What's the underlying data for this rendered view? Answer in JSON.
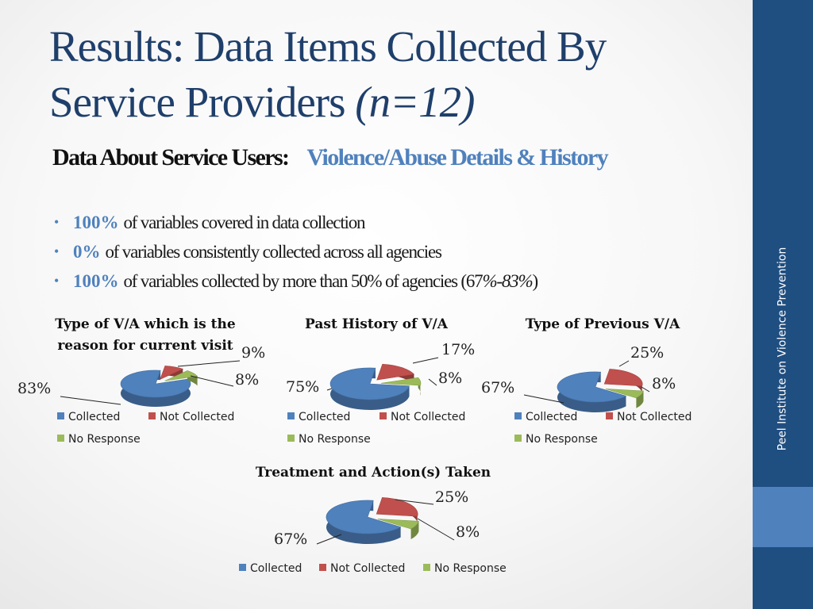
{
  "slide": {
    "title_line1": "Results: Data Items Collected By",
    "title_line2": "Service Providers",
    "title_n": "(n=12)",
    "subhead_dark": "Data About Service Users:",
    "subhead_blue": "Violence/Abuse Details & History",
    "bullets": [
      {
        "pct": "100%",
        "text": "of variables covered in data collection",
        "extra": "",
        "extra_close": ""
      },
      {
        "pct": "0%",
        "text": "of variables consistently collected across all agencies",
        "extra": "",
        "extra_close": ""
      },
      {
        "pct": "100%",
        "text": "of variables collected by more than 50% of agencies (67",
        "extra": "%-83%",
        "extra_close": ")"
      }
    ],
    "sidebar_text": "Peel Institute on Violence Prevention"
  },
  "colors": {
    "collected": "#4f81bd",
    "not_collected": "#c0504d",
    "no_response": "#9bbb59",
    "sidebar": "#1f4e80",
    "sidebar_accent": "#4f81bd"
  },
  "legend": [
    "Collected",
    "Not Collected",
    "No Response"
  ],
  "chart_data": [
    {
      "type": "pie",
      "title": "Type of V/A which is the reason for current visit",
      "categories": [
        "Collected",
        "Not Collected",
        "No Response"
      ],
      "values": [
        83,
        9,
        8
      ],
      "labels": [
        "83%",
        "9%",
        "8%"
      ],
      "legend_placement": "bottom"
    },
    {
      "type": "pie",
      "title": "Past History of V/A",
      "categories": [
        "Collected",
        "Not Collected",
        "No Response"
      ],
      "values": [
        75,
        17,
        8
      ],
      "labels": [
        "75%",
        "17%",
        "8%"
      ],
      "legend_placement": "bottom"
    },
    {
      "type": "pie",
      "title": "Type of Previous V/A",
      "categories": [
        "Collected",
        "Not Collected",
        "No Response"
      ],
      "values": [
        67,
        25,
        8
      ],
      "labels": [
        "67%",
        "25%",
        "8%"
      ],
      "legend_placement": "bottom"
    },
    {
      "type": "pie",
      "title": "Treatment and Action(s) Taken",
      "categories": [
        "Collected",
        "Not Collected",
        "No Response"
      ],
      "values": [
        67,
        25,
        8
      ],
      "labels": [
        "67%",
        "25%",
        "8%"
      ],
      "legend_placement": "bottom"
    }
  ]
}
